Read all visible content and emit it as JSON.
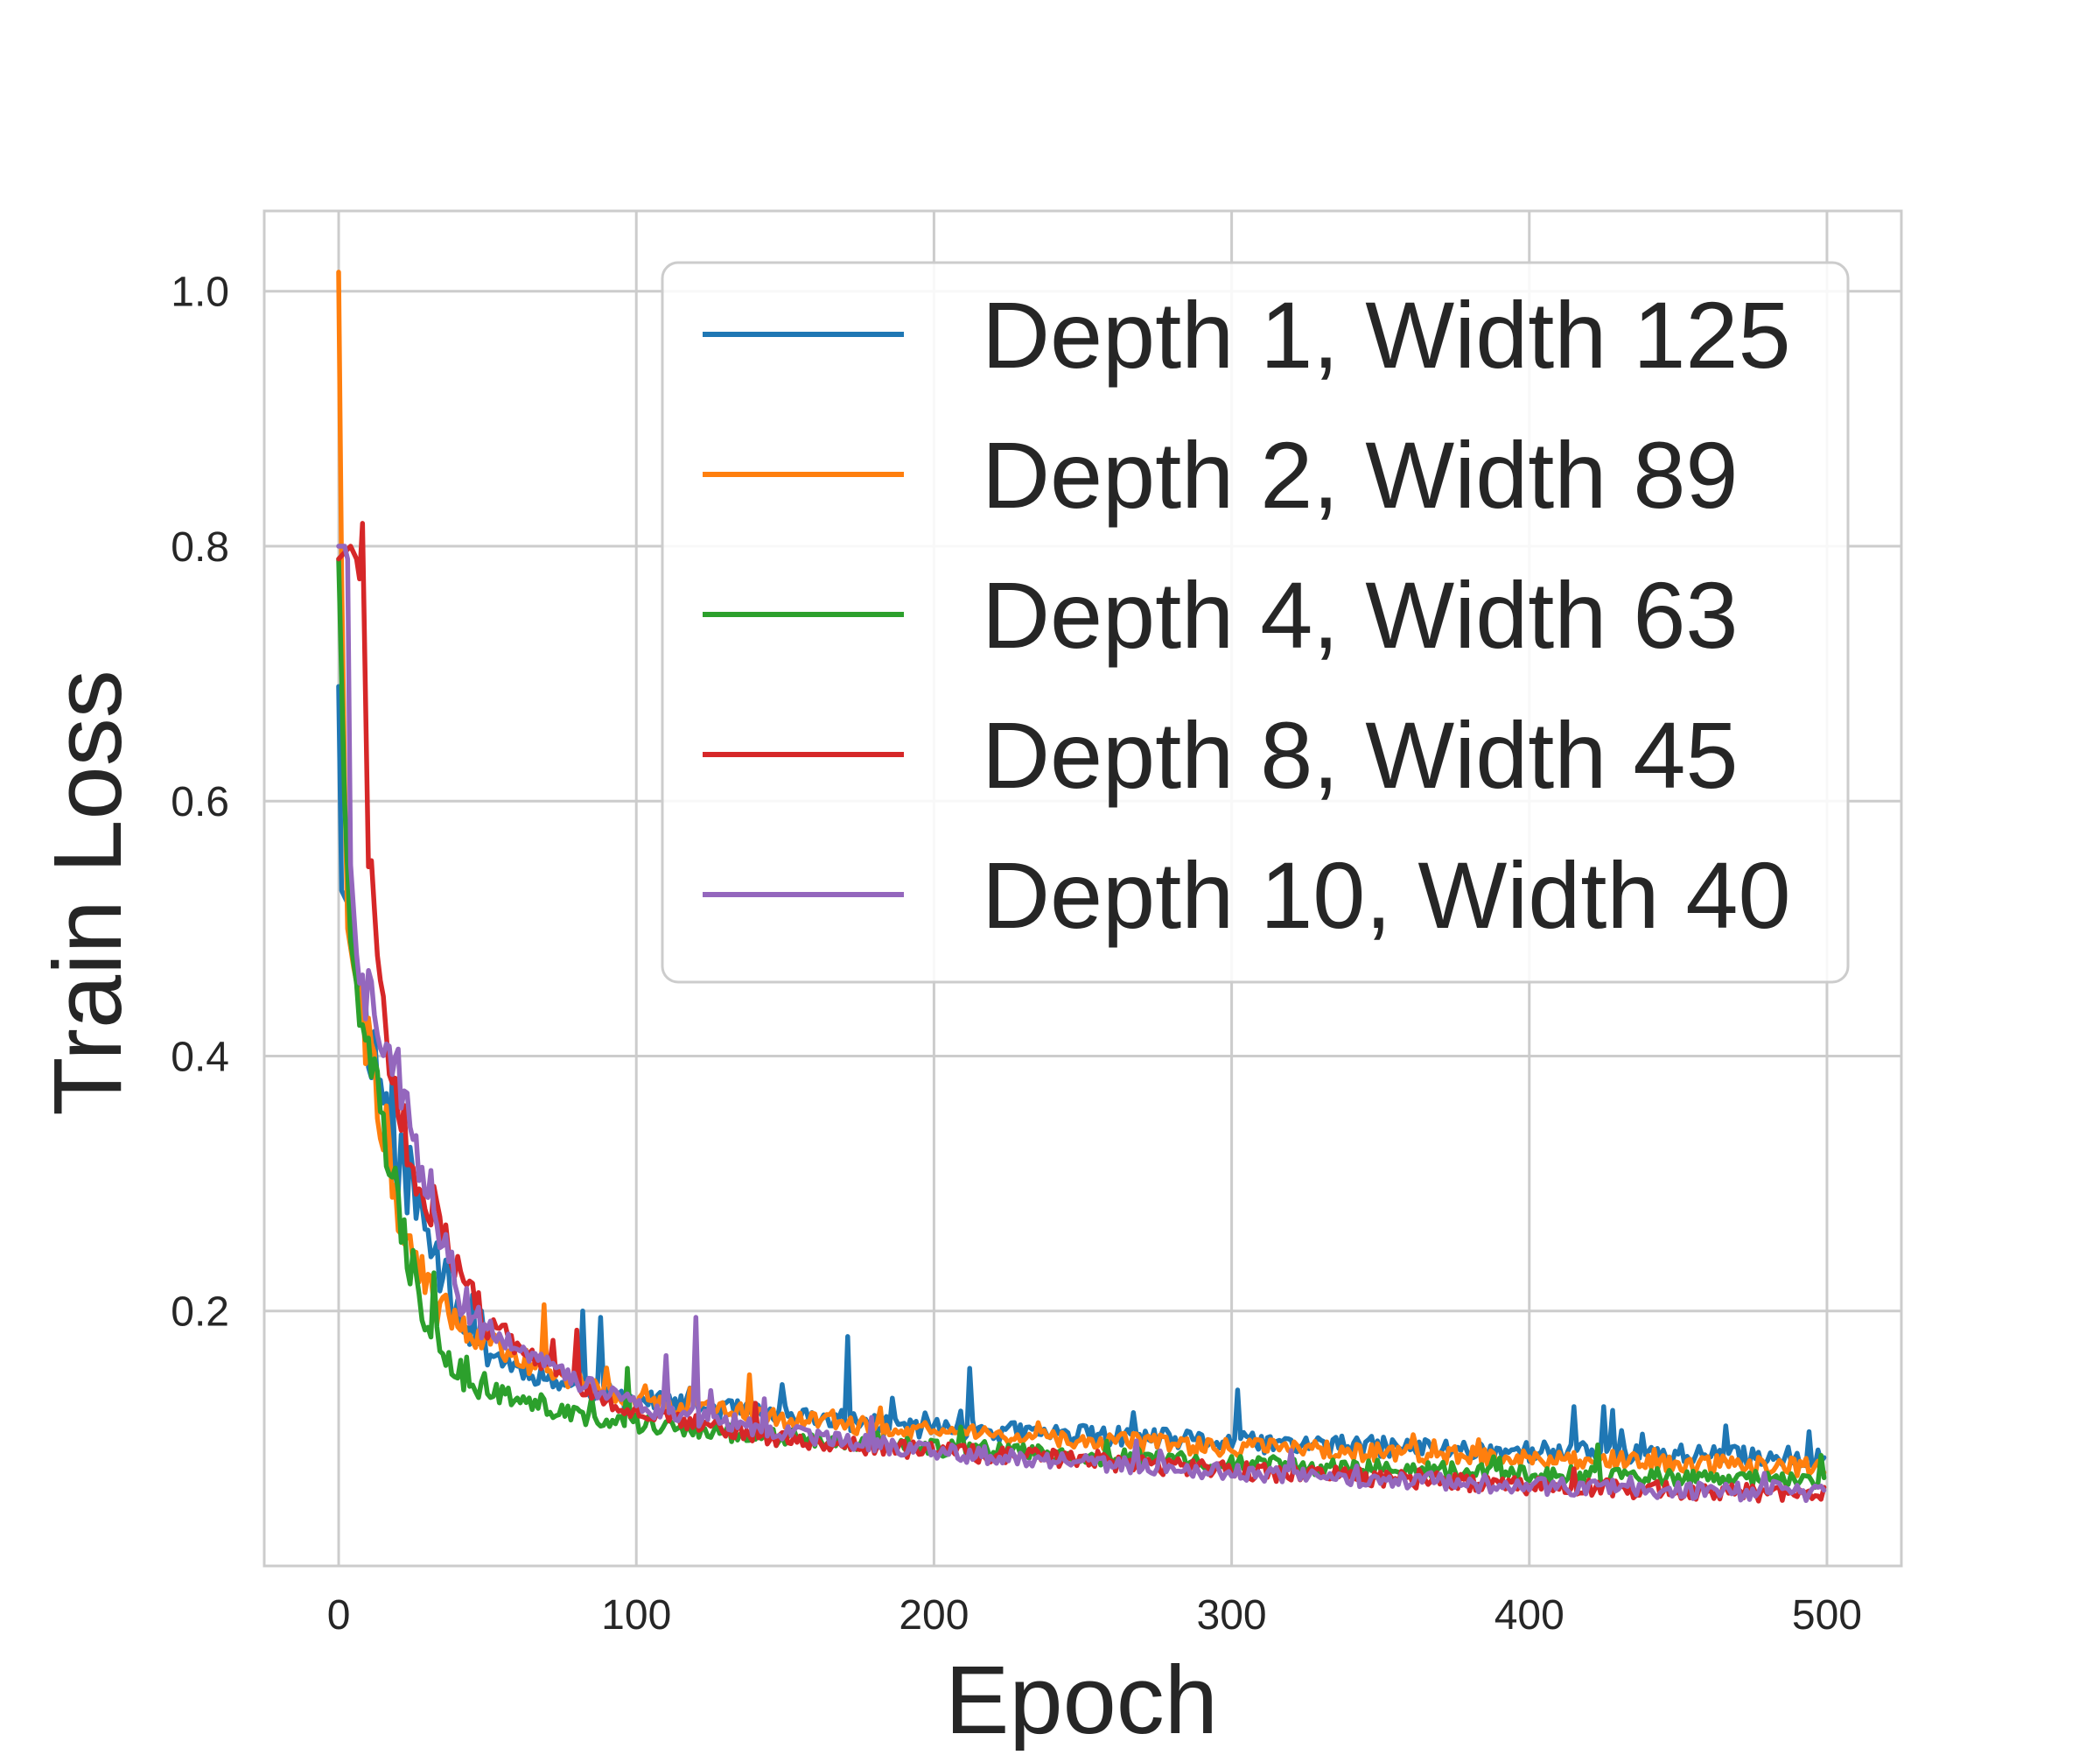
{
  "chart_data": {
    "type": "line",
    "title": "",
    "xlabel": "Epoch",
    "ylabel": "Train Loss",
    "xlim": [
      -25,
      525
    ],
    "ylim": [
      0,
      1.063
    ],
    "xticks": [
      0,
      100,
      200,
      300,
      400,
      500
    ],
    "yticks": [
      0.2,
      0.4,
      0.6,
      0.8,
      1.0
    ],
    "xtick_labels": [
      "0",
      "100",
      "200",
      "300",
      "400",
      "500"
    ],
    "ytick_labels": [
      "0.2",
      "0.4",
      "0.6",
      "0.8",
      "1.0"
    ],
    "grid": true,
    "legend_position": "upper-right",
    "x_range": [
      0,
      499
    ],
    "series": [
      {
        "name": "Depth 1, Width 125",
        "color": "#1f77b4",
        "keypoints": [
          [
            0,
            0.69
          ],
          [
            1,
            0.53
          ],
          [
            3,
            0.52
          ],
          [
            6,
            0.47
          ],
          [
            10,
            0.42
          ],
          [
            15,
            0.37
          ],
          [
            20,
            0.32
          ],
          [
            25,
            0.29
          ],
          [
            30,
            0.26
          ],
          [
            40,
            0.2
          ],
          [
            50,
            0.17
          ],
          [
            60,
            0.155
          ],
          [
            80,
            0.14
          ],
          [
            100,
            0.13
          ],
          [
            150,
            0.118
          ],
          [
            200,
            0.108
          ],
          [
            300,
            0.097
          ],
          [
            400,
            0.09
          ],
          [
            499,
            0.085
          ]
        ],
        "noise": 0.008,
        "seed": 11,
        "spikes": [
          [
            36,
            0.24
          ],
          [
            37,
            0.23
          ],
          [
            48,
            0.2
          ],
          [
            82,
            0.2
          ],
          [
            88,
            0.195
          ],
          [
            171,
            0.18
          ],
          [
            212,
            0.155
          ],
          [
            302,
            0.138
          ],
          [
            415,
            0.125
          ],
          [
            425,
            0.125
          ],
          [
            428,
            0.122
          ]
        ]
      },
      {
        "name": "Depth 2, Width 89",
        "color": "#ff7f0e",
        "keypoints": [
          [
            0,
            1.015
          ],
          [
            1,
            0.78
          ],
          [
            2,
            0.62
          ],
          [
            3,
            0.5
          ],
          [
            5,
            0.47
          ],
          [
            10,
            0.41
          ],
          [
            15,
            0.35
          ],
          [
            20,
            0.28
          ],
          [
            25,
            0.24
          ],
          [
            30,
            0.215
          ],
          [
            40,
            0.195
          ],
          [
            50,
            0.175
          ],
          [
            60,
            0.16
          ],
          [
            80,
            0.145
          ],
          [
            100,
            0.13
          ],
          [
            150,
            0.115
          ],
          [
            200,
            0.105
          ],
          [
            300,
            0.093
          ],
          [
            400,
            0.085
          ],
          [
            499,
            0.077
          ]
        ],
        "noise": 0.007,
        "seed": 22,
        "spikes": [
          [
            69,
            0.205
          ],
          [
            138,
            0.15
          ]
        ]
      },
      {
        "name": "Depth 4, Width 63",
        "color": "#2ca02c",
        "keypoints": [
          [
            0,
            0.79
          ],
          [
            2,
            0.6
          ],
          [
            4,
            0.49
          ],
          [
            7,
            0.44
          ],
          [
            10,
            0.41
          ],
          [
            15,
            0.34
          ],
          [
            20,
            0.28
          ],
          [
            25,
            0.23
          ],
          [
            30,
            0.2
          ],
          [
            35,
            0.175
          ],
          [
            40,
            0.155
          ],
          [
            50,
            0.14
          ],
          [
            60,
            0.13
          ],
          [
            80,
            0.118
          ],
          [
            100,
            0.112
          ],
          [
            150,
            0.1
          ],
          [
            200,
            0.093
          ],
          [
            300,
            0.08
          ],
          [
            400,
            0.072
          ],
          [
            499,
            0.065
          ]
        ],
        "noise": 0.007,
        "seed": 33,
        "spikes": [
          [
            32,
            0.23
          ],
          [
            97,
            0.155
          ]
        ]
      },
      {
        "name": "Depth 8, Width 45",
        "color": "#d62728",
        "keypoints": [
          [
            0,
            0.79
          ],
          [
            4,
            0.8
          ],
          [
            6,
            0.79
          ],
          [
            8,
            0.79
          ],
          [
            9,
            0.67
          ],
          [
            10,
            0.56
          ],
          [
            12,
            0.5
          ],
          [
            15,
            0.42
          ],
          [
            20,
            0.36
          ],
          [
            25,
            0.32
          ],
          [
            30,
            0.29
          ],
          [
            35,
            0.26
          ],
          [
            40,
            0.23
          ],
          [
            45,
            0.21
          ],
          [
            50,
            0.19
          ],
          [
            60,
            0.17
          ],
          [
            80,
            0.14
          ],
          [
            100,
            0.12
          ],
          [
            150,
            0.1
          ],
          [
            200,
            0.09
          ],
          [
            300,
            0.075
          ],
          [
            400,
            0.063
          ],
          [
            499,
            0.055
          ]
        ],
        "noise": 0.007,
        "seed": 44,
        "spikes": [
          [
            80,
            0.185
          ]
        ]
      },
      {
        "name": "Depth 10, Width 40",
        "color": "#9467bd",
        "keypoints": [
          [
            0,
            0.8
          ],
          [
            2,
            0.8
          ],
          [
            3,
            0.79
          ],
          [
            4,
            0.55
          ],
          [
            6,
            0.48
          ],
          [
            10,
            0.45
          ],
          [
            15,
            0.42
          ],
          [
            20,
            0.39
          ],
          [
            25,
            0.34
          ],
          [
            30,
            0.3
          ],
          [
            35,
            0.25
          ],
          [
            40,
            0.215
          ],
          [
            45,
            0.2
          ],
          [
            50,
            0.185
          ],
          [
            60,
            0.17
          ],
          [
            80,
            0.145
          ],
          [
            100,
            0.125
          ],
          [
            150,
            0.105
          ],
          [
            200,
            0.09
          ],
          [
            300,
            0.073
          ],
          [
            400,
            0.063
          ],
          [
            499,
            0.057
          ]
        ],
        "noise": 0.007,
        "seed": 55,
        "spikes": [
          [
            120,
            0.195
          ],
          [
            110,
            0.165
          ]
        ]
      }
    ]
  }
}
